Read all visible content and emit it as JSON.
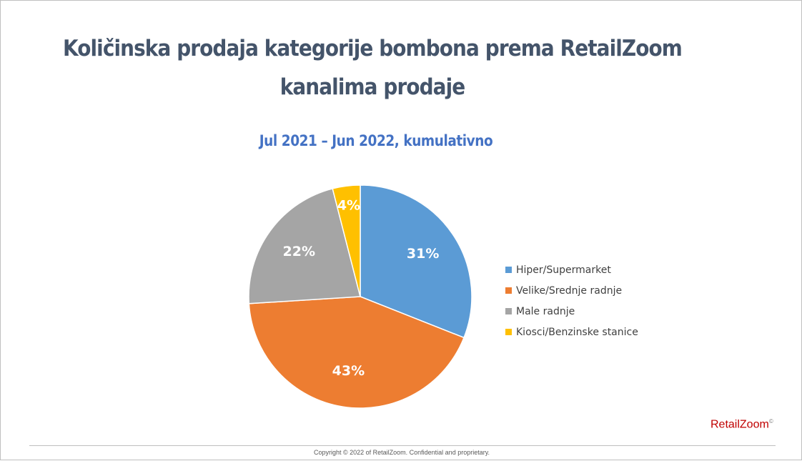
{
  "slide": {
    "title": "Količinska prodaja kategorije bombona prema RetailZoom kanalima prodaje",
    "brand_name": "RetailZoom",
    "brand_mark": "©",
    "copyright": "Copyright © 2022 of RetailZoom. Confidential and proprietary."
  },
  "chart_data": {
    "type": "pie",
    "title": "Jul 2021 – Jun 2022, kumulativno",
    "categories": [
      "Hiper/Supermarket",
      "Velike/Srednje radnje",
      "Male radnje",
      "Kiosci/Benzinske stanice"
    ],
    "values": [
      31,
      43,
      22,
      4
    ],
    "labels": [
      "31%",
      "43%",
      "22%",
      "4%"
    ],
    "colors": [
      "#5b9bd5",
      "#ed7d31",
      "#a5a5a5",
      "#ffc000"
    ],
    "start_angle": "12 o'clock",
    "direction": "clockwise",
    "legend_position": "right"
  }
}
